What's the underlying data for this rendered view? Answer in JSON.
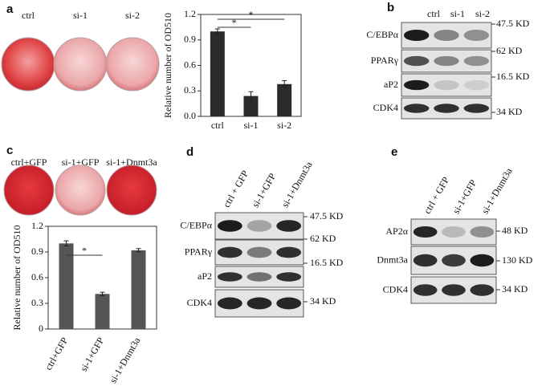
{
  "panels": {
    "a": {
      "label": "a",
      "wells": [
        "ctrl",
        "si-1",
        "si-2"
      ]
    },
    "b": {
      "label": "b",
      "lanes": [
        "ctrl",
        "si-1",
        "si-2"
      ],
      "rows": [
        {
          "protein": "C/EBPα",
          "size": "47.5 KD"
        },
        {
          "protein": "PPARγ",
          "size": "62 KD"
        },
        {
          "protein": "aP2",
          "size": "16.5 KD"
        },
        {
          "protein": "CDK4",
          "size": "34 KD"
        }
      ]
    },
    "c": {
      "label": "c",
      "wells": [
        "ctrl+GFP",
        "si-1+GFP",
        "si-1+Dnmt3a"
      ]
    },
    "d": {
      "label": "d",
      "lanes": [
        "ctrl + GFP",
        "si-1+GFP",
        "si-1+Dnmt3a"
      ],
      "rows": [
        {
          "protein": "C/EBPα",
          "size": "47.5 KD"
        },
        {
          "protein": "PPARγ",
          "size": "62 KD"
        },
        {
          "protein": "aP2",
          "size": "16.5 KD"
        },
        {
          "protein": "CDK4",
          "size": "34 KD"
        }
      ]
    },
    "e": {
      "label": "e",
      "lanes": [
        "ctrl + GFP",
        "si-1+GFP",
        "si-1+Dnmt3a"
      ],
      "rows": [
        {
          "protein": "AP2α",
          "size": "48 KD"
        },
        {
          "protein": "Dnmt3a",
          "size": "130 KD"
        },
        {
          "protein": "CDK4",
          "size": "34 KD"
        }
      ]
    }
  },
  "chart_data": [
    {
      "type": "bar",
      "y_label": "Relative number of OD510",
      "categories": [
        "ctrl",
        "si-1",
        "si-2"
      ],
      "values": [
        1.0,
        0.24,
        0.38
      ],
      "errors": [
        0.03,
        0.05,
        0.04
      ],
      "color": "#2b2b2b",
      "ylim": [
        0,
        1.2
      ],
      "yticks": [
        {
          "value": 0,
          "label": "0.0"
        },
        0.3,
        0.6,
        0.9,
        1.2
      ],
      "annotations": [
        "*",
        "*"
      ]
    },
    {
      "type": "bar",
      "y_label": "Relative number of OD510",
      "categories": [
        "ctrl+GFP",
        "si-1+GFP",
        "si-1+Dnmt3a"
      ],
      "values": [
        1.0,
        0.41,
        0.92
      ],
      "errors": [
        0.03,
        0.02,
        0.02
      ],
      "color": "#555555",
      "ylim": [
        0,
        1.2
      ],
      "yticks": [
        0,
        0.3,
        0.6,
        0.9,
        1.2
      ],
      "annotations": [
        "*"
      ]
    }
  ]
}
